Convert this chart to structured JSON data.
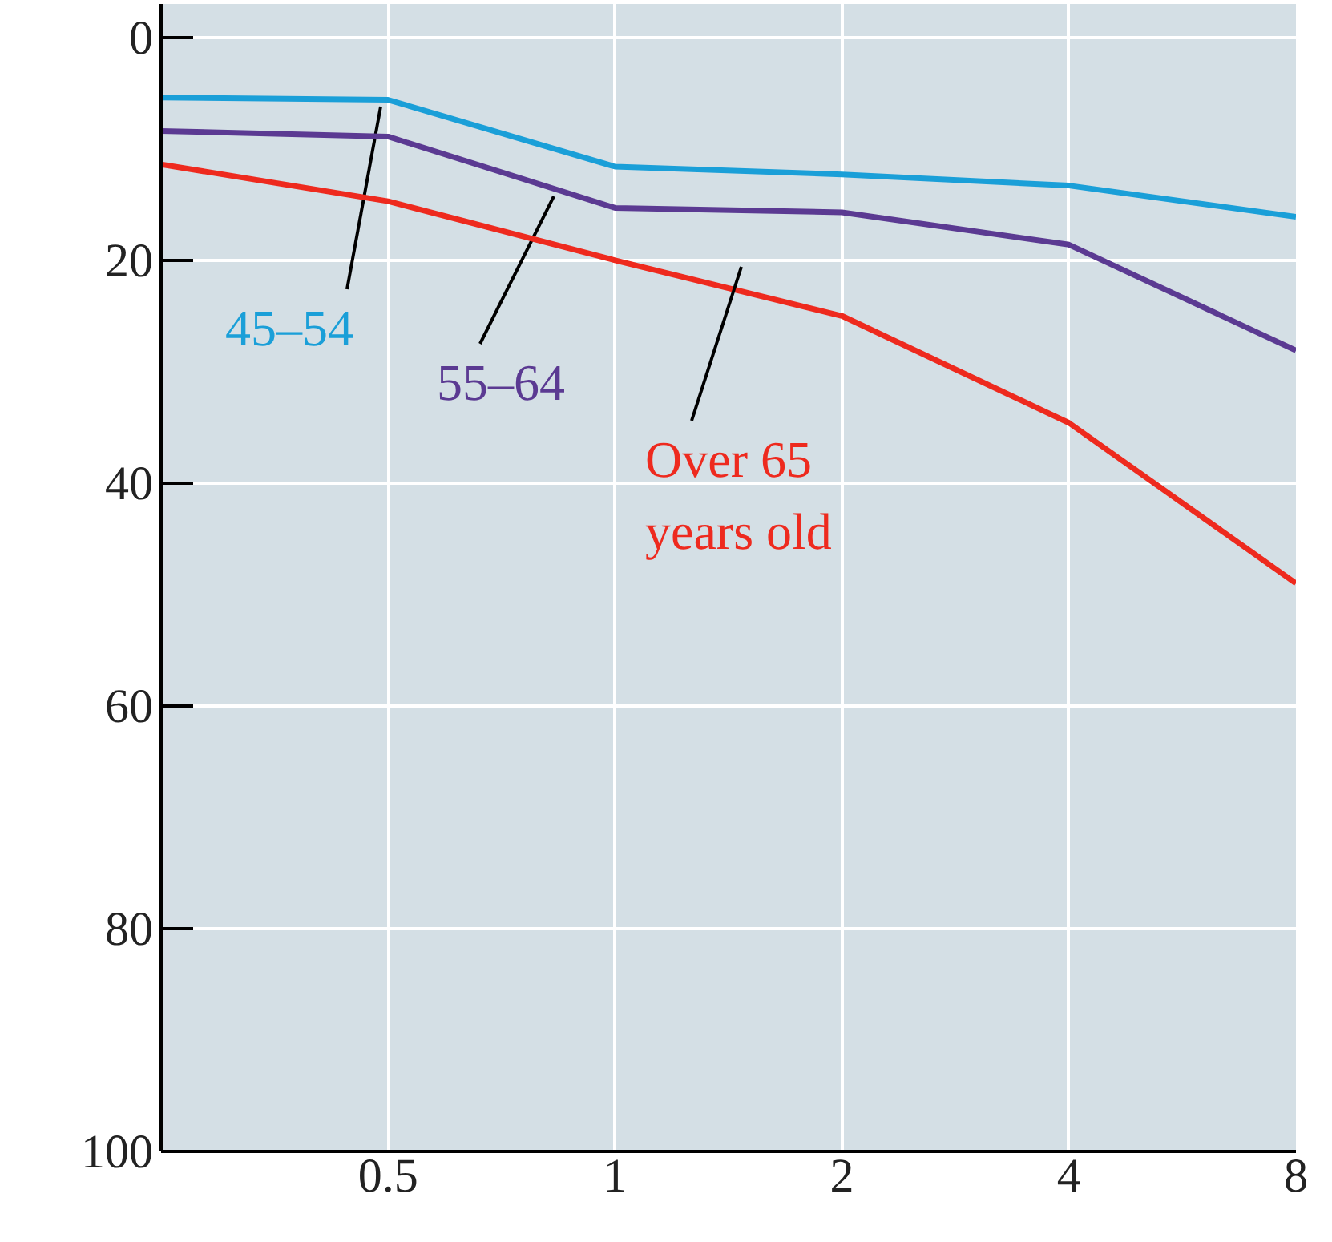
{
  "chart_data": {
    "type": "line",
    "x": [
      0.25,
      0.5,
      1,
      2,
      4,
      8
    ],
    "series": [
      {
        "name": "45–54",
        "color": "#1a9fd8",
        "values": [
          5.4,
          5.6,
          11.6,
          12.3,
          13.3,
          16.1
        ]
      },
      {
        "name": "55–64",
        "color": "#5b3a92",
        "values": [
          8.4,
          8.9,
          15.3,
          15.7,
          18.6,
          28.1
        ]
      },
      {
        "name": "Over 65\nyears old",
        "color": "#ee2a1e",
        "values": [
          11.4,
          14.7,
          20,
          25,
          34.6,
          49
        ]
      }
    ],
    "log": "x",
    "xlim": [
      0.25,
      8
    ],
    "xticks": [
      0.5,
      1,
      2,
      4,
      8
    ],
    "ylim": [
      100,
      -3
    ],
    "yticks": [
      0,
      20,
      40,
      60,
      80,
      100
    ],
    "grid": true,
    "line_style": "solid"
  }
}
